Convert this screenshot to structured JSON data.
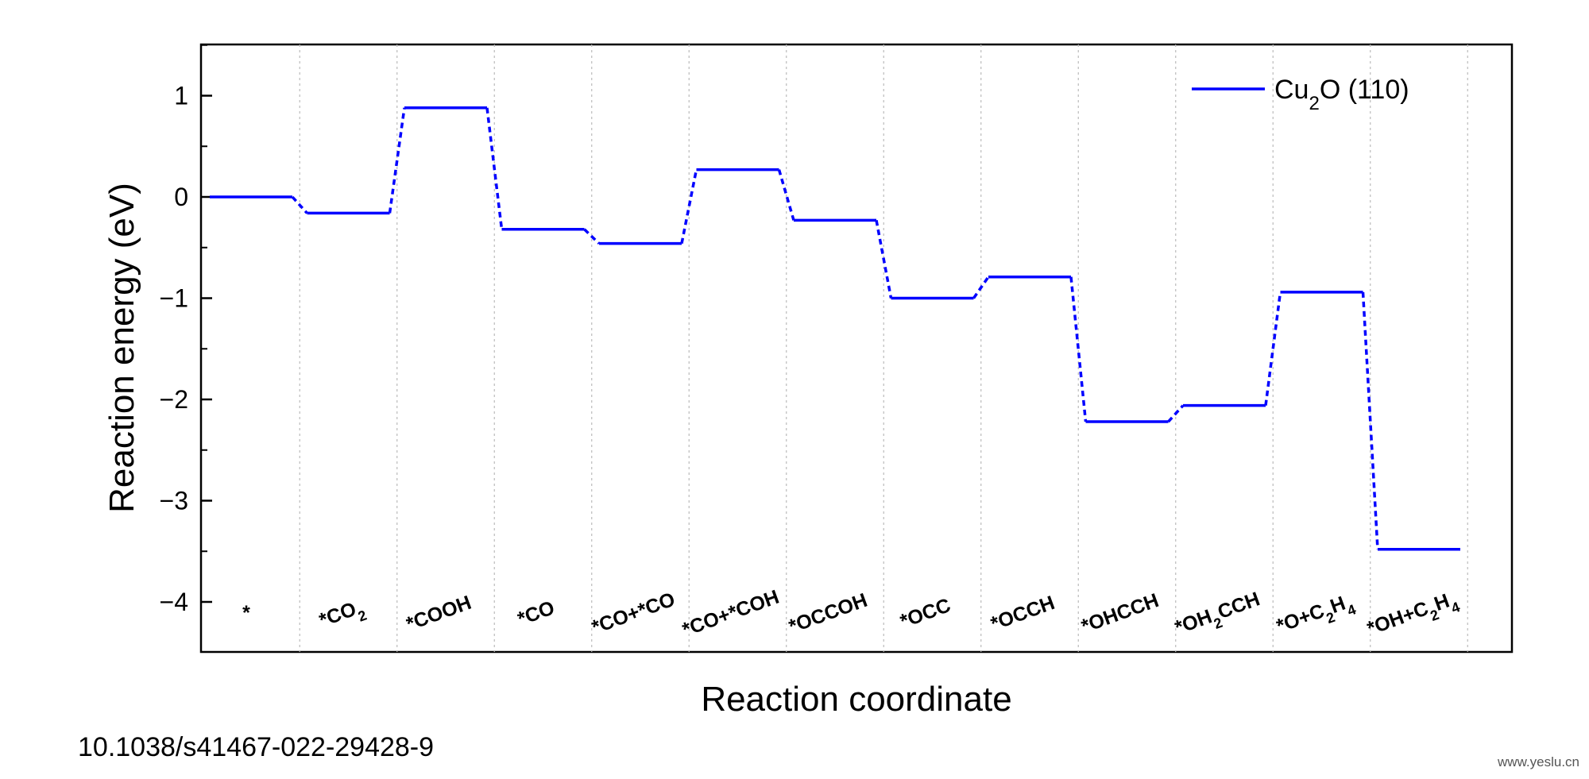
{
  "chart_data": {
    "type": "line",
    "style": "reaction-energy-diagram",
    "xlabel": "Reaction coordinate",
    "ylabel": "Reaction energy (eV)",
    "ylim": [
      -4.5,
      1.5
    ],
    "yticks": [
      1,
      0,
      -1,
      -2,
      -3,
      -4
    ],
    "ytick_labels": [
      "1",
      "0",
      "−1",
      "−2",
      "−3",
      "−4"
    ],
    "grid": "vertical dotted separators",
    "legend_position": "top-right",
    "categories": [
      {
        "html": "*",
        "text": "*"
      },
      {
        "html": "*CO<tspan baseline-shift=\"sub\" font-size=\"18\">2</tspan>",
        "text": "*CO2"
      },
      {
        "html": "*COOH",
        "text": "*COOH"
      },
      {
        "html": "*CO",
        "text": "*CO"
      },
      {
        "html": "*CO+*CO",
        "text": "*CO+*CO"
      },
      {
        "html": "*CO+*COH",
        "text": "*CO+*COH"
      },
      {
        "html": "*OCCOH",
        "text": "*OCCOH"
      },
      {
        "html": "*OCC",
        "text": "*OCC"
      },
      {
        "html": "*OCCH",
        "text": "*OCCH"
      },
      {
        "html": "*OHCCH",
        "text": "*OHCCH"
      },
      {
        "html": "*OH<tspan baseline-shift=\"sub\" font-size=\"18\">2</tspan>CCH",
        "text": "*OH2CCH"
      },
      {
        "html": "*O+C<tspan baseline-shift=\"sub\" font-size=\"18\">2</tspan>H<tspan baseline-shift=\"sub\" font-size=\"18\">4</tspan>",
        "text": "*O+C2H4"
      },
      {
        "html": "*OH+C<tspan baseline-shift=\"sub\" font-size=\"18\">2</tspan>H<tspan baseline-shift=\"sub\" font-size=\"18\">4</tspan>",
        "text": "*OH+C2H4"
      }
    ],
    "series": [
      {
        "name": "Cu2O (110)",
        "legend_html": "Cu<tspan baseline-shift=\"sub\" font-size=\"24\">2</tspan>O (110)",
        "color": "#0000ff",
        "values": [
          0.0,
          -0.16,
          0.88,
          -0.32,
          -0.46,
          0.27,
          -0.23,
          -1.0,
          -0.79,
          -2.22,
          -2.06,
          -0.94,
          -3.48
        ]
      }
    ]
  },
  "footer": {
    "doi": "10.1038/s41467-022-29428-9",
    "watermark": "www.yeslu.cn"
  }
}
